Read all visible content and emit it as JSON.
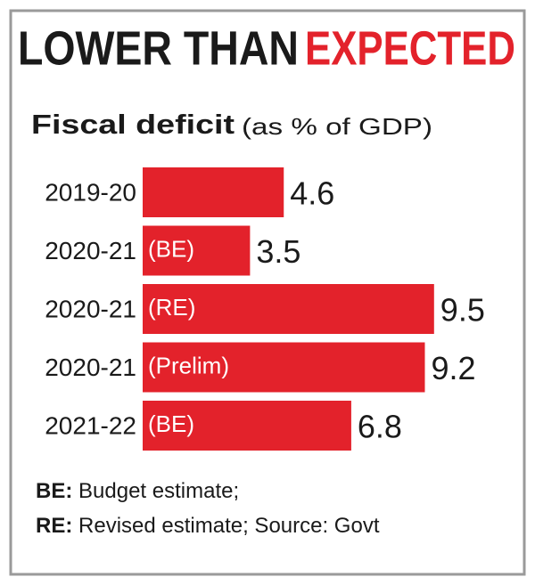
{
  "chart_data": {
    "type": "bar",
    "title": "LOWER THAN",
    "title_highlight": "EXPECTED",
    "highlight_color": "#e3222b",
    "subtitle": "Fiscal deficit",
    "unit": "(as % of GDP)",
    "categories": [
      "2019-20",
      "2020-21",
      "2020-21",
      "2020-21",
      "2021-22"
    ],
    "bar_labels": [
      null,
      "(BE)",
      "(RE)",
      "(Prelim)",
      "(BE)"
    ],
    "values": [
      4.6,
      3.5,
      9.5,
      9.2,
      6.8
    ],
    "color": "#e3222b",
    "notes": [
      {
        "term": "BE:",
        "text": "Budget estimate;"
      },
      {
        "term": "RE:",
        "text": "Revised estimate; Source: Govt"
      }
    ]
  }
}
